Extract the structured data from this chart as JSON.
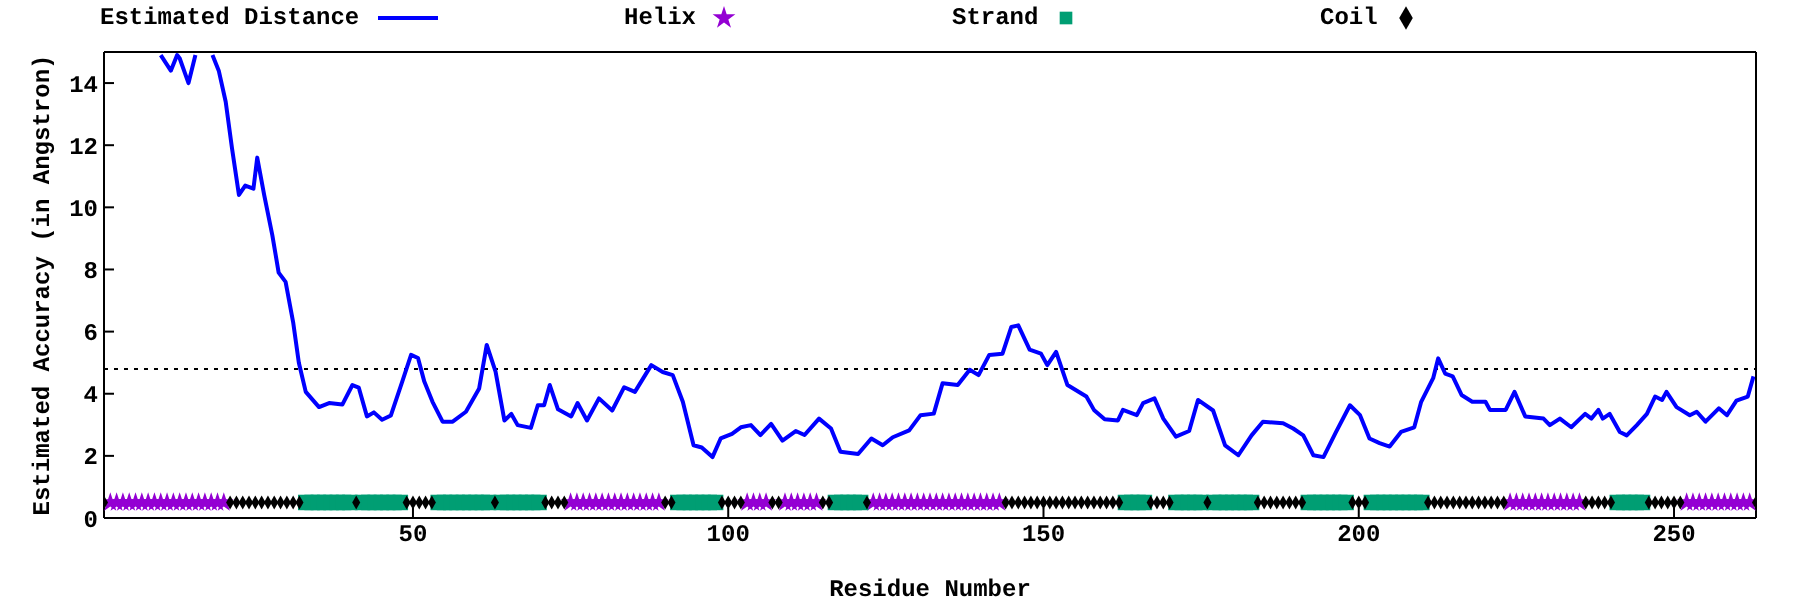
{
  "chart_data": {
    "type": "line",
    "xlabel": "Residue Number",
    "ylabel": "Estimated Accuracy (in Angstron)",
    "xlim": [
      1,
      263
    ],
    "xticks": [
      50,
      100,
      150,
      200,
      250
    ],
    "ylim": [
      0,
      15
    ],
    "yticks": [
      0,
      2,
      4,
      6,
      8,
      10,
      12,
      14
    ],
    "legend": "top",
    "line_style": "solid",
    "ref_lines": [
      {
        "axis": "y",
        "value": 4.8,
        "color": "#000000",
        "line_style": "dotted"
      }
    ],
    "series": [
      {
        "name": "Estimated Distance",
        "type": "line",
        "color": "#0000ff",
        "marker": "none",
        "x": [
          10,
          11.6,
          12.6,
          13,
          14.4,
          15.5,
          17,
          18.2,
          19.2,
          20.3,
          21.3,
          22.4,
          23.4,
          24.7,
          25.3,
          26.4,
          27.7,
          28.7,
          29.8,
          31,
          31.9,
          33,
          35.1,
          36.7,
          38.8,
          40.4,
          41.4,
          42.7,
          43.8,
          45.1,
          46.5,
          48.3,
          49.7,
          50.8,
          51.8,
          53.1,
          54.7,
          56.3,
          58.4,
          60.5,
          61.7,
          63.1,
          64.5,
          65.6,
          66.6,
          68.7,
          69.8,
          70.8,
          71.7,
          73,
          75.1,
          76.1,
          77.6,
          79.5,
          81.6,
          83.5,
          85.2,
          87.8,
          89.6,
          91.2,
          92.8,
          94.5,
          95.8,
          97.5,
          98.8,
          100.6,
          102,
          103.6,
          105.1,
          106.8,
          108.6,
          110.7,
          112.1,
          114.4,
          116.3,
          117.8,
          120.6,
          122.7,
          124.5,
          126.1,
          128.7,
          130.5,
          132.6,
          134,
          136.4,
          138.3,
          139.7,
          141.4,
          143.5,
          144.9,
          146,
          147.8,
          149.6,
          150.6,
          152,
          153.8,
          156.8,
          158,
          159.7,
          161.8,
          162.6,
          164.8,
          165.8,
          167.6,
          169,
          171,
          173.1,
          174.5,
          176.9,
          178.8,
          180.9,
          183,
          184.8,
          188,
          189.6,
          191.2,
          192.8,
          194.4,
          196.4,
          198.6,
          200.2,
          201.7,
          203.3,
          204.9,
          206.7,
          208.8,
          209.9,
          211.8,
          212.6,
          213.7,
          214.9,
          216.3,
          218,
          220.1,
          220.8,
          223.3,
          224.7,
          226.4,
          229.3,
          230.3,
          231.9,
          233.7,
          235.9,
          236.9,
          238,
          238.7,
          239.8,
          241.4,
          242.5,
          244.1,
          245.7,
          247,
          248.1,
          248.8,
          250.4,
          252.5,
          253.6,
          255,
          257.1,
          258.4,
          259.9,
          261.7,
          262.6
        ],
        "values": [
          14.9,
          14.4,
          14.9,
          14.8,
          14,
          14.9,
          null,
          14.9,
          14.4,
          13.4,
          11.9,
          10.4,
          10.7,
          10.6,
          11.6,
          10.4,
          9.1,
          7.9,
          7.6,
          6.3,
          5,
          4.06,
          3.57,
          3.7,
          3.65,
          4.28,
          4.2,
          3.27,
          3.4,
          3.16,
          3.3,
          4.39,
          5.25,
          5.15,
          4.39,
          3.74,
          3.1,
          3.1,
          3.42,
          4.17,
          5.57,
          4.71,
          3.14,
          3.35,
          2.99,
          2.9,
          3.63,
          3.63,
          4.28,
          3.5,
          3.27,
          3.7,
          3.14,
          3.85,
          3.46,
          4.21,
          4.06,
          4.92,
          4.7,
          4.6,
          3.74,
          2.34,
          2.27,
          1.96,
          2.56,
          2.71,
          2.92,
          2.99,
          2.67,
          3.03,
          2.49,
          2.8,
          2.67,
          3.2,
          2.88,
          2.13,
          2.06,
          2.56,
          2.34,
          2.6,
          2.82,
          3.31,
          3.36,
          4.34,
          4.28,
          4.77,
          4.6,
          5.25,
          5.29,
          6.15,
          6.2,
          5.42,
          5.29,
          4.92,
          5.35,
          4.28,
          3.91,
          3.48,
          3.18,
          3.14,
          3.48,
          3.31,
          3.7,
          3.85,
          3.2,
          2.62,
          2.8,
          3.8,
          3.46,
          2.34,
          2.02,
          2.66,
          3.1,
          3.05,
          2.88,
          2.66,
          2.02,
          1.96,
          2.77,
          3.63,
          3.31,
          2.56,
          2.41,
          2.3,
          2.77,
          2.92,
          3.74,
          4.5,
          5.14,
          4.65,
          4.56,
          3.96,
          3.74,
          3.74,
          3.48,
          3.48,
          4.06,
          3.27,
          3.2,
          2.99,
          3.2,
          2.92,
          3.35,
          3.2,
          3.48,
          3.2,
          3.35,
          2.77,
          2.66,
          2.99,
          3.35,
          3.91,
          3.8,
          4.06,
          3.57,
          3.31,
          3.42,
          3.1,
          3.53,
          3.31,
          3.78,
          3.91,
          4.56
        ]
      },
      {
        "name": "Helix",
        "type": "scatter",
        "color": "#9400d3",
        "marker": "star",
        "x": [
          2,
          3,
          4,
          5,
          6,
          7,
          8,
          9,
          10,
          11,
          12,
          13,
          14,
          15,
          16,
          17,
          18,
          19,
          20,
          75,
          76,
          77,
          78,
          79,
          80,
          81,
          82,
          83,
          84,
          85,
          86,
          87,
          88,
          89,
          103,
          104,
          105,
          106,
          109,
          110,
          111,
          112,
          113,
          114,
          123,
          124,
          125,
          126,
          127,
          128,
          129,
          130,
          131,
          132,
          133,
          134,
          135,
          136,
          137,
          138,
          139,
          140,
          141,
          142,
          143,
          224,
          225,
          226,
          227,
          228,
          229,
          230,
          231,
          232,
          233,
          234,
          235,
          252,
          253,
          254,
          255,
          256,
          257,
          258,
          259,
          260,
          261,
          262
        ],
        "values": [
          0.5,
          0.5,
          0.5,
          0.5,
          0.5,
          0.5,
          0.5,
          0.5,
          0.5,
          0.5,
          0.5,
          0.5,
          0.5,
          0.5,
          0.5,
          0.5,
          0.5,
          0.5,
          0.5,
          0.5,
          0.5,
          0.5,
          0.5,
          0.5,
          0.5,
          0.5,
          0.5,
          0.5,
          0.5,
          0.5,
          0.5,
          0.5,
          0.5,
          0.5,
          0.5,
          0.5,
          0.5,
          0.5,
          0.5,
          0.5,
          0.5,
          0.5,
          0.5,
          0.5,
          0.5,
          0.5,
          0.5,
          0.5,
          0.5,
          0.5,
          0.5,
          0.5,
          0.5,
          0.5,
          0.5,
          0.5,
          0.5,
          0.5,
          0.5,
          0.5,
          0.5,
          0.5,
          0.5,
          0.5,
          0.5,
          0.5,
          0.5,
          0.5,
          0.5,
          0.5,
          0.5,
          0.5,
          0.5,
          0.5,
          0.5,
          0.5,
          0.5,
          0.5,
          0.5,
          0.5,
          0.5,
          0.5,
          0.5,
          0.5,
          0.5,
          0.5,
          0.5,
          0.5
        ]
      },
      {
        "name": "Strand",
        "type": "scatter",
        "color": "#009e73",
        "marker": "square",
        "x": [
          33,
          34,
          35,
          36,
          37,
          38,
          39,
          40,
          42,
          43,
          44,
          45,
          46,
          47,
          48,
          54,
          55,
          56,
          57,
          58,
          59,
          60,
          61,
          62,
          64,
          65,
          66,
          67,
          68,
          69,
          70,
          92,
          93,
          94,
          95,
          96,
          97,
          98,
          117,
          118,
          119,
          120,
          121,
          163,
          164,
          165,
          166,
          171,
          172,
          173,
          174,
          175,
          177,
          178,
          179,
          180,
          181,
          182,
          183,
          192,
          193,
          194,
          195,
          196,
          197,
          198,
          202,
          203,
          204,
          205,
          206,
          207,
          208,
          209,
          210,
          241,
          242,
          243,
          244,
          245
        ],
        "values": [
          0.5,
          0.5,
          0.5,
          0.5,
          0.5,
          0.5,
          0.5,
          0.5,
          0.5,
          0.5,
          0.5,
          0.5,
          0.5,
          0.5,
          0.5,
          0.5,
          0.5,
          0.5,
          0.5,
          0.5,
          0.5,
          0.5,
          0.5,
          0.5,
          0.5,
          0.5,
          0.5,
          0.5,
          0.5,
          0.5,
          0.5,
          0.5,
          0.5,
          0.5,
          0.5,
          0.5,
          0.5,
          0.5,
          0.5,
          0.5,
          0.5,
          0.5,
          0.5,
          0.5,
          0.5,
          0.5,
          0.5,
          0.5,
          0.5,
          0.5,
          0.5,
          0.5,
          0.5,
          0.5,
          0.5,
          0.5,
          0.5,
          0.5,
          0.5,
          0.5,
          0.5,
          0.5,
          0.5,
          0.5,
          0.5,
          0.5,
          0.5,
          0.5,
          0.5,
          0.5,
          0.5,
          0.5,
          0.5,
          0.5,
          0.5,
          0.5,
          0.5,
          0.5,
          0.5,
          0.5
        ]
      },
      {
        "name": "Coil",
        "type": "scatter",
        "color": "#000000",
        "marker": "diamond",
        "x": [
          1,
          21,
          22,
          23,
          24,
          25,
          26,
          27,
          28,
          29,
          30,
          31,
          32,
          41,
          49,
          50,
          51,
          52,
          53,
          63,
          71,
          72,
          73,
          74,
          90,
          91,
          99,
          100,
          101,
          102,
          107,
          108,
          115,
          116,
          122,
          144,
          145,
          146,
          147,
          148,
          149,
          150,
          151,
          152,
          153,
          154,
          155,
          156,
          157,
          158,
          159,
          160,
          161,
          162,
          167,
          168,
          169,
          170,
          176,
          184,
          185,
          186,
          187,
          188,
          189,
          190,
          191,
          199,
          200,
          201,
          211,
          212,
          213,
          214,
          215,
          216,
          217,
          218,
          219,
          220,
          221,
          222,
          223,
          236,
          237,
          238,
          239,
          240,
          246,
          247,
          248,
          249,
          250,
          251,
          263
        ],
        "values": [
          0.5,
          0.5,
          0.5,
          0.5,
          0.5,
          0.5,
          0.5,
          0.5,
          0.5,
          0.5,
          0.5,
          0.5,
          0.5,
          0.5,
          0.5,
          0.5,
          0.5,
          0.5,
          0.5,
          0.5,
          0.5,
          0.5,
          0.5,
          0.5,
          0.5,
          0.5,
          0.5,
          0.5,
          0.5,
          0.5,
          0.5,
          0.5,
          0.5,
          0.5,
          0.5,
          0.5,
          0.5,
          0.5,
          0.5,
          0.5,
          0.5,
          0.5,
          0.5,
          0.5,
          0.5,
          0.5,
          0.5,
          0.5,
          0.5,
          0.5,
          0.5,
          0.5,
          0.5,
          0.5,
          0.5,
          0.5,
          0.5,
          0.5,
          0.5,
          0.5,
          0.5,
          0.5,
          0.5,
          0.5,
          0.5,
          0.5,
          0.5,
          0.5,
          0.5,
          0.5,
          0.5,
          0.5,
          0.5,
          0.5,
          0.5,
          0.5,
          0.5,
          0.5,
          0.5,
          0.5,
          0.5,
          0.5,
          0.5,
          0.5,
          0.5,
          0.5,
          0.5,
          0.5,
          0.5,
          0.5,
          0.5,
          0.5,
          0.5,
          0.5,
          0.5
        ]
      }
    ]
  }
}
